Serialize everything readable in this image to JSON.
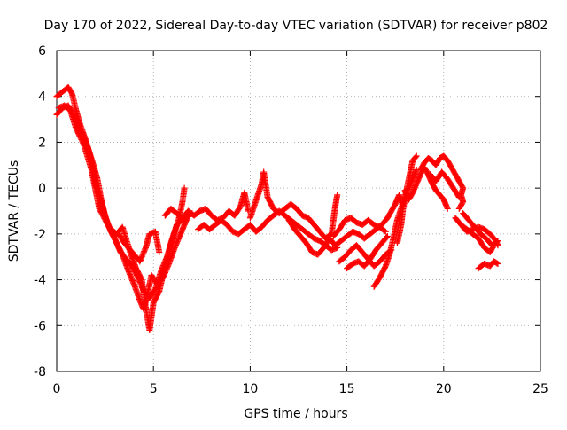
{
  "chart_data": {
    "type": "scatter",
    "title": "Day 170 of 2022, Sidereal Day-to-day VTEC variation (SDTVAR) for receiver p802",
    "xlabel": "GPS time / hours",
    "ylabel": "SDTVAR / TECUs",
    "xlim": [
      0,
      25
    ],
    "ylim": [
      -8,
      6
    ],
    "xticks": [
      0,
      5,
      10,
      15,
      20,
      25
    ],
    "yticks": [
      -8,
      -6,
      -4,
      -2,
      0,
      2,
      4,
      6
    ],
    "xtick_labels": [
      "0",
      "5",
      "10",
      "15",
      "20",
      "25"
    ],
    "ytick_labels": [
      "-8",
      "-6",
      "-4",
      "-2",
      "0",
      "2",
      "4",
      "6"
    ],
    "grid": true,
    "marker": "+",
    "color": "#ff0000",
    "series": [
      {
        "name": "SDTVAR",
        "segments": [
          [
            [
              0.0,
              3.2
            ],
            [
              0.3,
              3.5
            ],
            [
              0.6,
              3.6
            ],
            [
              0.8,
              3.3
            ],
            [
              1.0,
              2.9
            ],
            [
              1.3,
              2.4
            ],
            [
              1.6,
              1.8
            ],
            [
              1.9,
              1.0
            ],
            [
              2.1,
              0.4
            ],
            [
              2.3,
              -0.5
            ],
            [
              2.5,
              -1.2
            ],
            [
              2.8,
              -1.9
            ],
            [
              3.1,
              -2.4
            ],
            [
              3.4,
              -2.9
            ],
            [
              3.7,
              -3.6
            ],
            [
              4.0,
              -4.2
            ],
            [
              4.3,
              -4.9
            ],
            [
              4.5,
              -5.3
            ],
            [
              4.7,
              -4.6
            ],
            [
              4.9,
              -3.8
            ],
            [
              5.2,
              -4.2
            ],
            [
              5.5,
              -3.9
            ],
            [
              5.8,
              -3.3
            ],
            [
              6.1,
              -2.6
            ],
            [
              6.4,
              -2.0
            ],
            [
              6.6,
              -1.6
            ],
            [
              6.8,
              -1.2
            ]
          ],
          [
            [
              0.0,
              4.0
            ],
            [
              0.3,
              4.2
            ],
            [
              0.6,
              4.4
            ],
            [
              0.8,
              4.1
            ],
            [
              1.0,
              3.4
            ],
            [
              1.2,
              2.8
            ],
            [
              1.5,
              2.1
            ],
            [
              1.8,
              1.2
            ],
            [
              2.0,
              0.2
            ],
            [
              2.3,
              -0.6
            ],
            [
              2.6,
              -1.5
            ],
            [
              3.0,
              -2.2
            ],
            [
              3.3,
              -2.8
            ],
            [
              3.6,
              -3.1
            ],
            [
              3.9,
              -3.4
            ],
            [
              4.2,
              -3.9
            ],
            [
              4.5,
              -4.5
            ],
            [
              4.8,
              -4.8
            ],
            [
              5.1,
              -4.4
            ],
            [
              5.4,
              -3.6
            ],
            [
              5.7,
              -3.0
            ],
            [
              6.0,
              -2.2
            ],
            [
              6.3,
              -1.4
            ],
            [
              6.5,
              -0.6
            ],
            [
              6.6,
              0.0
            ]
          ],
          [
            [
              0.1,
              3.5
            ],
            [
              0.4,
              3.6
            ],
            [
              0.7,
              3.4
            ],
            [
              1.0,
              2.6
            ],
            [
              1.4,
              1.9
            ],
            [
              1.8,
              0.8
            ],
            [
              2.2,
              -0.9
            ],
            [
              2.7,
              -1.7
            ],
            [
              3.1,
              -2.0
            ],
            [
              3.4,
              -1.7
            ],
            [
              3.8,
              -2.8
            ],
            [
              4.1,
              -3.5
            ],
            [
              4.4,
              -4.0
            ],
            [
              4.6,
              -5.2
            ],
            [
              4.8,
              -6.2
            ],
            [
              5.0,
              -5.0
            ],
            [
              5.3,
              -4.5
            ],
            [
              5.6,
              -3.4
            ],
            [
              5.9,
              -2.4
            ],
            [
              6.2,
              -1.6
            ],
            [
              6.6,
              -1.3
            ],
            [
              7.0,
              -1.1
            ]
          ],
          [
            [
              3.2,
              -2.0
            ],
            [
              3.5,
              -2.4
            ],
            [
              3.9,
              -2.8
            ],
            [
              4.3,
              -3.2
            ],
            [
              4.6,
              -2.6
            ],
            [
              4.8,
              -2.0
            ],
            [
              5.1,
              -1.9
            ],
            [
              5.3,
              -2.8
            ]
          ],
          [
            [
              5.6,
              -1.2
            ],
            [
              5.9,
              -0.9
            ],
            [
              6.2,
              -1.1
            ],
            [
              6.5,
              -1.3
            ],
            [
              6.8,
              -1.0
            ],
            [
              7.1,
              -1.2
            ],
            [
              7.4,
              -1.0
            ],
            [
              7.7,
              -0.9
            ],
            [
              8.0,
              -1.2
            ],
            [
              8.3,
              -1.4
            ],
            [
              8.6,
              -1.3
            ],
            [
              8.9,
              -1.0
            ],
            [
              9.2,
              -1.2
            ],
            [
              9.5,
              -0.8
            ],
            [
              9.7,
              -0.2
            ],
            [
              9.9,
              -1.0
            ]
          ],
          [
            [
              7.3,
              -1.8
            ],
            [
              7.6,
              -1.6
            ],
            [
              7.9,
              -1.8
            ],
            [
              8.2,
              -1.6
            ],
            [
              8.5,
              -1.4
            ],
            [
              8.8,
              -1.6
            ],
            [
              9.1,
              -1.9
            ],
            [
              9.4,
              -2.0
            ],
            [
              9.7,
              -1.8
            ],
            [
              10.0,
              -1.6
            ],
            [
              10.3,
              -1.9
            ],
            [
              10.6,
              -1.7
            ],
            [
              10.9,
              -1.4
            ],
            [
              11.2,
              -1.2
            ],
            [
              11.5,
              -1.0
            ],
            [
              11.8,
              -1.2
            ],
            [
              12.1,
              -1.4
            ],
            [
              12.4,
              -1.6
            ],
            [
              12.7,
              -1.8
            ],
            [
              13.0,
              -2.0
            ],
            [
              13.3,
              -2.2
            ],
            [
              13.6,
              -2.3
            ],
            [
              13.9,
              -2.5
            ],
            [
              14.2,
              -2.7
            ],
            [
              14.5,
              -2.6
            ]
          ],
          [
            [
              10.0,
              -1.3
            ],
            [
              10.2,
              -0.8
            ],
            [
              10.4,
              -0.3
            ],
            [
              10.6,
              0.2
            ],
            [
              10.7,
              0.7
            ],
            [
              10.9,
              -0.4
            ],
            [
              11.2,
              -0.9
            ],
            [
              11.5,
              -1.1
            ],
            [
              11.8,
              -0.9
            ],
            [
              12.1,
              -0.7
            ],
            [
              12.4,
              -0.9
            ],
            [
              12.7,
              -1.2
            ],
            [
              13.0,
              -1.3
            ],
            [
              13.3,
              -1.6
            ],
            [
              13.6,
              -1.9
            ],
            [
              13.9,
              -2.2
            ],
            [
              14.2,
              -2.0
            ],
            [
              14.4,
              -0.8
            ],
            [
              14.5,
              -0.3
            ]
          ],
          [
            [
              12.0,
              -1.4
            ],
            [
              12.3,
              -1.8
            ],
            [
              12.6,
              -2.1
            ],
            [
              12.9,
              -2.4
            ],
            [
              13.2,
              -2.8
            ],
            [
              13.5,
              -2.9
            ],
            [
              13.8,
              -2.6
            ],
            [
              14.1,
              -2.2
            ],
            [
              14.4,
              -2.5
            ],
            [
              14.7,
              -2.3
            ],
            [
              15.0,
              -2.1
            ],
            [
              15.3,
              -1.9
            ],
            [
              15.6,
              -2.0
            ],
            [
              15.9,
              -2.2
            ],
            [
              16.2,
              -2.0
            ],
            [
              16.5,
              -1.8
            ],
            [
              16.8,
              -1.6
            ],
            [
              17.1,
              -1.3
            ],
            [
              17.3,
              -1.0
            ],
            [
              17.5,
              -0.7
            ],
            [
              17.7,
              -0.3
            ],
            [
              17.9,
              -0.8
            ]
          ],
          [
            [
              14.3,
              -2.1
            ],
            [
              14.6,
              -1.8
            ],
            [
              14.9,
              -1.4
            ],
            [
              15.2,
              -1.3
            ],
            [
              15.5,
              -1.5
            ],
            [
              15.8,
              -1.6
            ],
            [
              16.1,
              -1.4
            ],
            [
              16.4,
              -1.6
            ],
            [
              16.7,
              -1.7
            ],
            [
              17.0,
              -1.9
            ]
          ],
          [
            [
              14.6,
              -3.2
            ],
            [
              14.9,
              -3.0
            ],
            [
              15.2,
              -2.7
            ],
            [
              15.5,
              -2.5
            ],
            [
              15.8,
              -2.8
            ],
            [
              16.1,
              -3.1
            ],
            [
              16.4,
              -3.4
            ],
            [
              16.7,
              -3.2
            ],
            [
              17.0,
              -2.9
            ],
            [
              17.3,
              -2.7
            ]
          ],
          [
            [
              15.0,
              -3.5
            ],
            [
              15.3,
              -3.3
            ],
            [
              15.6,
              -3.2
            ],
            [
              15.9,
              -3.4
            ],
            [
              16.2,
              -3.1
            ],
            [
              16.5,
              -2.7
            ],
            [
              16.8,
              -2.4
            ],
            [
              17.1,
              -2.1
            ]
          ],
          [
            [
              16.4,
              -4.3
            ],
            [
              16.7,
              -3.9
            ],
            [
              17.0,
              -3.4
            ],
            [
              17.2,
              -2.9
            ],
            [
              17.4,
              -2.2
            ],
            [
              17.6,
              -1.4
            ],
            [
              17.8,
              -0.9
            ],
            [
              18.0,
              -0.4
            ],
            [
              18.2,
              0.4
            ],
            [
              18.4,
              1.2
            ],
            [
              18.6,
              1.4
            ]
          ],
          [
            [
              17.6,
              -2.4
            ],
            [
              17.8,
              -1.6
            ],
            [
              17.9,
              -0.9
            ],
            [
              18.0,
              -0.5
            ],
            [
              18.2,
              0.0
            ],
            [
              18.4,
              0.4
            ],
            [
              18.6,
              0.8
            ]
          ],
          [
            [
              18.0,
              -0.1
            ],
            [
              18.2,
              -0.5
            ],
            [
              18.4,
              -0.2
            ],
            [
              18.6,
              0.2
            ],
            [
              18.8,
              0.6
            ],
            [
              19.0,
              0.9
            ],
            [
              19.2,
              0.6
            ],
            [
              19.4,
              0.2
            ],
            [
              19.6,
              -0.1
            ],
            [
              19.8,
              -0.3
            ],
            [
              20.0,
              -0.5
            ],
            [
              20.2,
              -0.9
            ]
          ],
          [
            [
              18.8,
              0.8
            ],
            [
              19.0,
              1.1
            ],
            [
              19.2,
              1.3
            ],
            [
              19.4,
              1.2
            ],
            [
              19.6,
              1.0
            ],
            [
              19.8,
              1.3
            ],
            [
              20.0,
              1.4
            ],
            [
              20.2,
              1.2
            ],
            [
              20.4,
              0.9
            ],
            [
              20.6,
              0.6
            ],
            [
              20.8,
              0.3
            ],
            [
              21.0,
              0.0
            ],
            [
              20.9,
              -0.3
            ],
            [
              21.0,
              -0.6
            ],
            [
              20.8,
              -0.9
            ]
          ],
          [
            [
              19.3,
              0.6
            ],
            [
              19.6,
              0.3
            ],
            [
              19.9,
              0.7
            ],
            [
              20.2,
              0.4
            ],
            [
              20.5,
              0.0
            ],
            [
              20.8,
              -0.4
            ]
          ],
          [
            [
              20.6,
              -1.3
            ],
            [
              20.9,
              -1.6
            ],
            [
              21.2,
              -1.9
            ],
            [
              21.5,
              -1.8
            ],
            [
              21.8,
              -1.7
            ],
            [
              22.1,
              -1.8
            ],
            [
              22.4,
              -2.0
            ],
            [
              22.7,
              -2.3
            ],
            [
              22.8,
              -2.5
            ]
          ],
          [
            [
              21.0,
              -1.1
            ],
            [
              21.3,
              -1.4
            ],
            [
              21.6,
              -1.7
            ],
            [
              21.9,
              -2.0
            ],
            [
              22.2,
              -2.2
            ],
            [
              22.5,
              -2.5
            ],
            [
              22.8,
              -2.3
            ]
          ],
          [
            [
              20.9,
              -1.6
            ],
            [
              21.2,
              -1.8
            ],
            [
              21.5,
              -2.0
            ],
            [
              21.8,
              -2.2
            ],
            [
              22.1,
              -2.6
            ],
            [
              22.4,
              -2.8
            ],
            [
              22.6,
              -2.5
            ]
          ],
          [
            [
              21.8,
              -3.5
            ],
            [
              22.1,
              -3.3
            ],
            [
              22.4,
              -3.4
            ],
            [
              22.6,
              -3.2
            ],
            [
              22.8,
              -3.3
            ]
          ]
        ]
      }
    ]
  }
}
